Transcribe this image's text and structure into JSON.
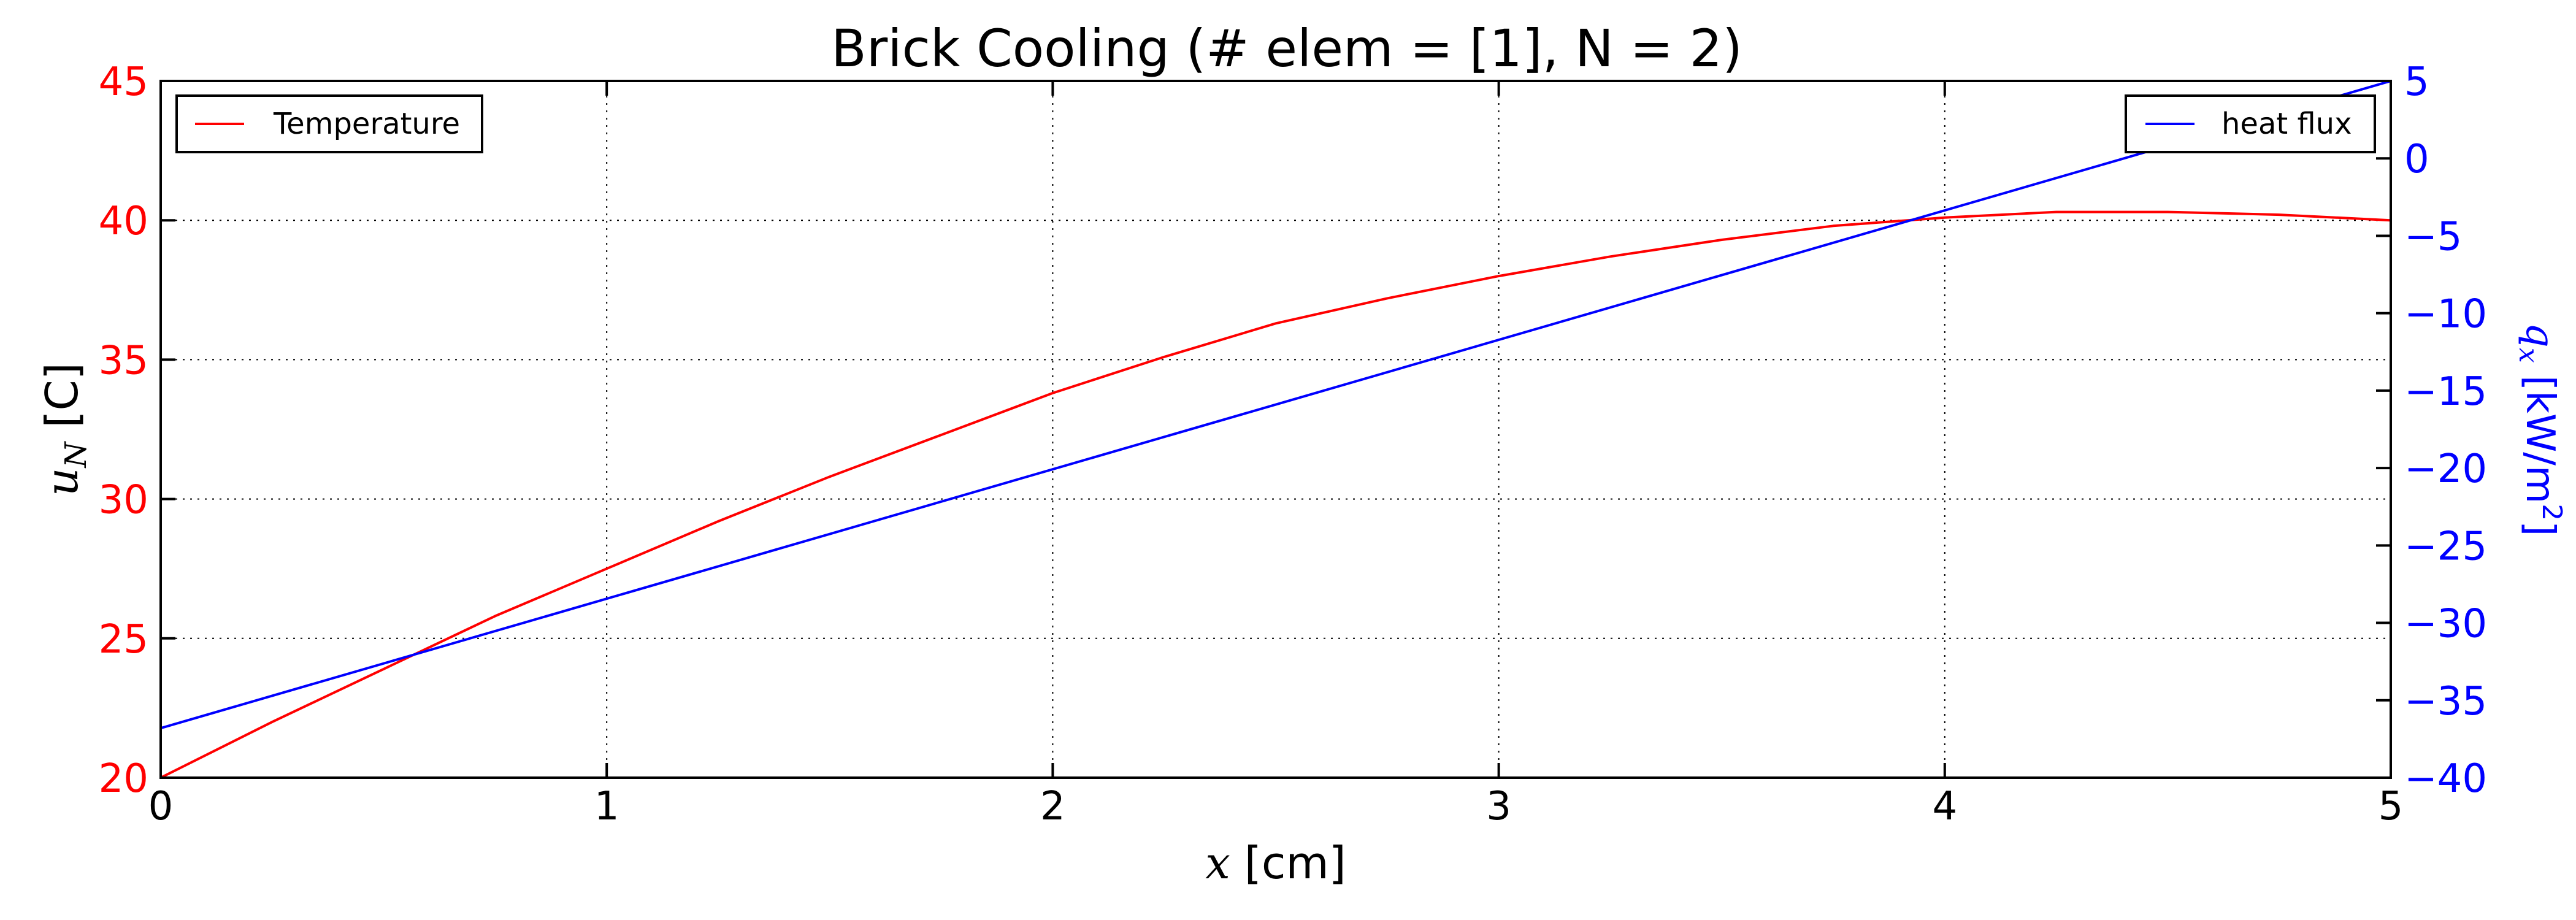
{
  "chart_data": {
    "type": "line",
    "title": "Brick Cooling (# elem = [1], N = 2)",
    "x_axis": {
      "label_var": "x",
      "label_unit": "[cm]",
      "range": [
        0,
        5
      ],
      "ticks": [
        0,
        1,
        2,
        3,
        4,
        5
      ],
      "tick_labels": [
        "0",
        "1",
        "2",
        "3",
        "4",
        "5"
      ]
    },
    "y_left": {
      "label_var": "u",
      "label_sub": "N",
      "label_unit": "[C]",
      "range": [
        20,
        45
      ],
      "ticks": [
        20,
        25,
        30,
        35,
        40,
        45
      ],
      "tick_labels": [
        "20",
        "25",
        "30",
        "35",
        "40",
        "45"
      ],
      "color": "#ff0000"
    },
    "y_right": {
      "label_var": "q",
      "label_sub": "x",
      "label_unit": "[kW/m",
      "label_sup": "2",
      "label_close": "]",
      "range": [
        -40,
        5
      ],
      "ticks": [
        -40,
        -35,
        -30,
        -25,
        -20,
        -15,
        -10,
        -5,
        0,
        5
      ],
      "tick_labels": [
        "−40",
        "−35",
        "−30",
        "−25",
        "−20",
        "−15",
        "−10",
        "−5",
        "0",
        "5"
      ],
      "color": "#0000ff"
    },
    "grid": true,
    "series": [
      {
        "name": "Temperature",
        "axis": "left",
        "color": "#ff0000",
        "x": [
          0,
          0.25,
          0.5,
          0.75,
          1.0,
          1.25,
          1.5,
          1.75,
          2.0,
          2.25,
          2.5,
          2.75,
          3.0,
          3.25,
          3.5,
          3.75,
          4.0,
          4.25,
          4.5,
          4.75,
          5.0
        ],
        "values": [
          20.0,
          22.0,
          23.9,
          25.8,
          27.5,
          29.2,
          30.8,
          32.3,
          33.8,
          35.1,
          36.3,
          37.2,
          38.0,
          38.7,
          39.3,
          39.8,
          40.1,
          40.3,
          40.3,
          40.2,
          40.0
        ]
      },
      {
        "name": "heat flux",
        "axis": "right",
        "color": "#0000ff",
        "x": [
          0,
          5
        ],
        "values": [
          -36.8,
          5.0
        ]
      }
    ],
    "legends": [
      {
        "position": "top-left",
        "series": [
          "Temperature"
        ]
      },
      {
        "position": "top-right",
        "series": [
          "heat flux"
        ]
      }
    ]
  }
}
